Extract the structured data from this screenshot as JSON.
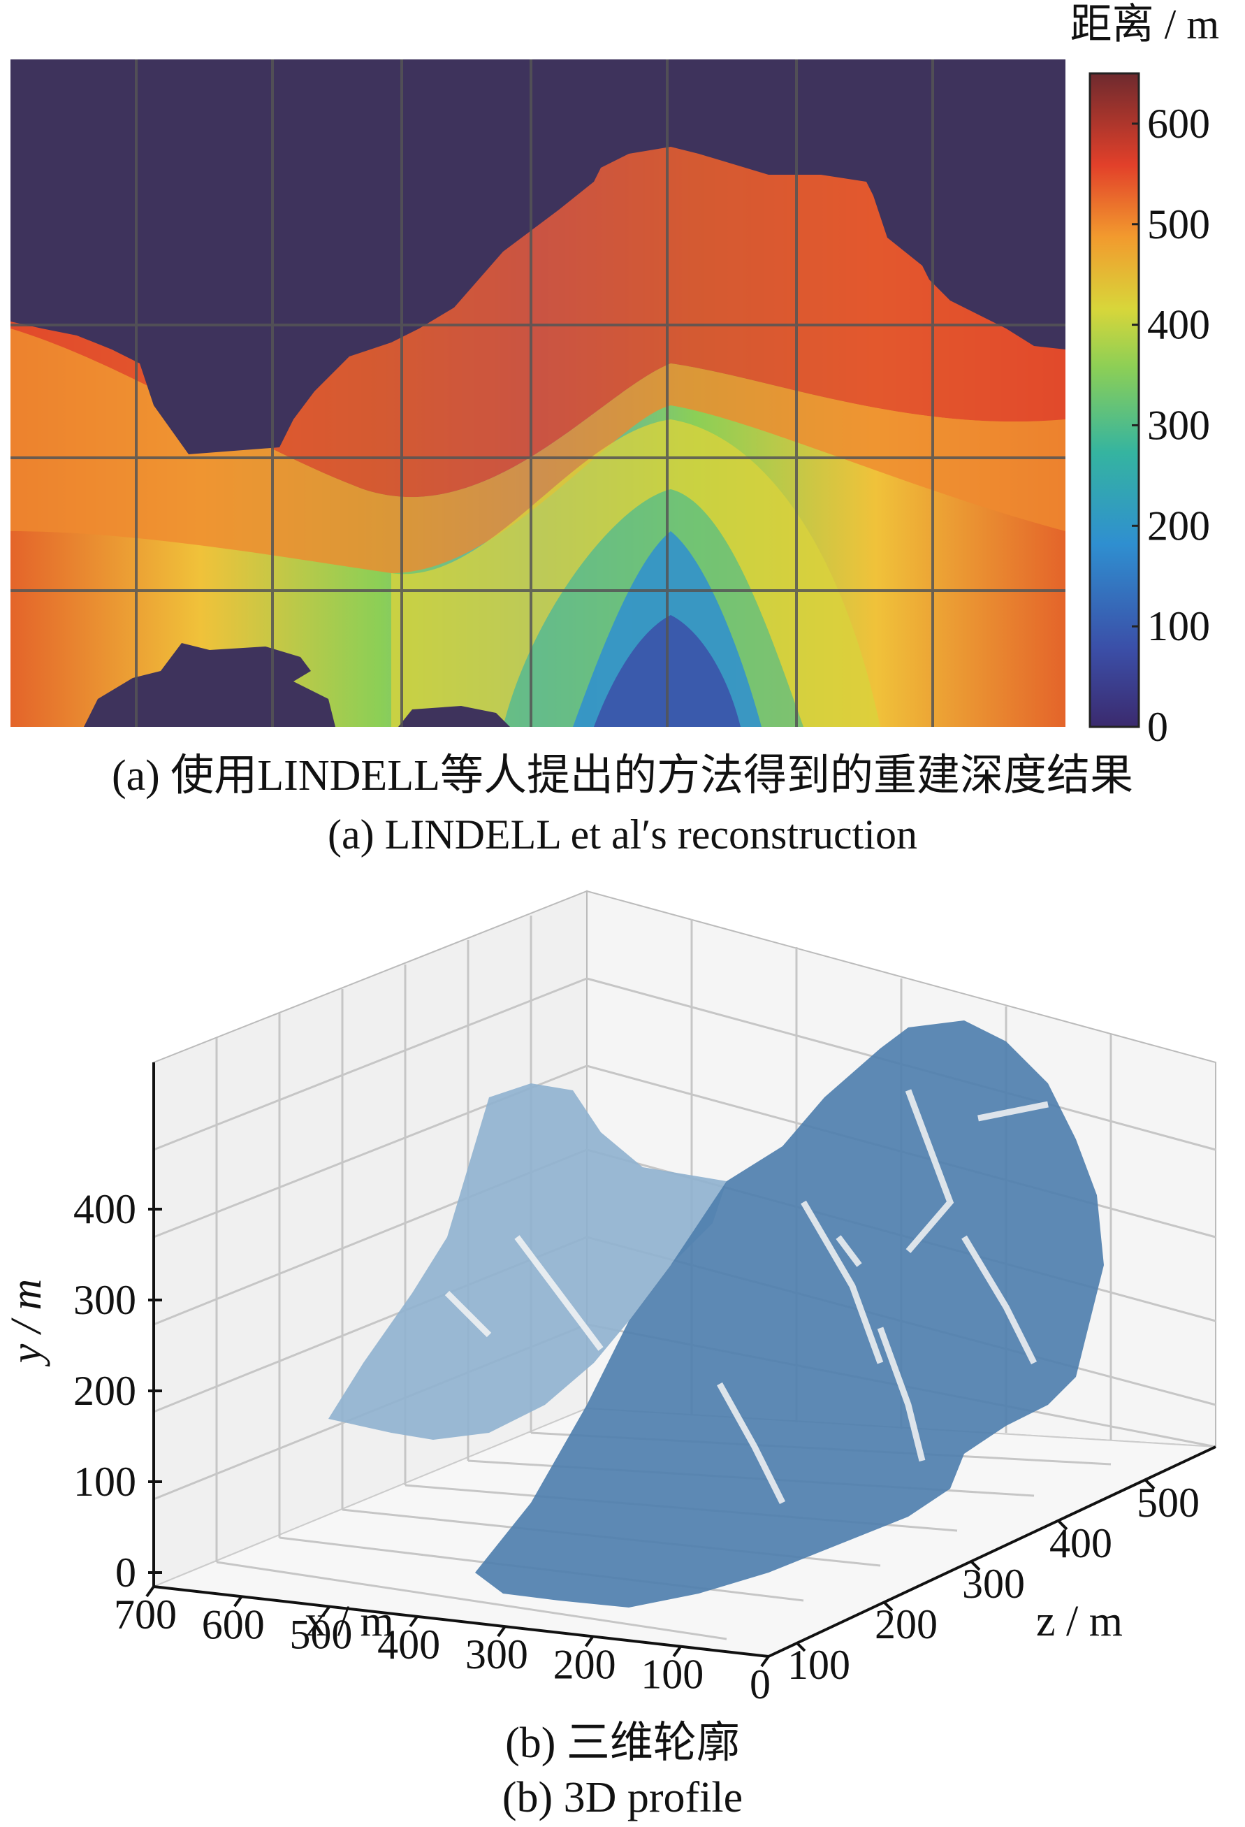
{
  "captions": {
    "a_cn": "(a) 使用LINDELL等人提出的方法得到的重建深度结果",
    "a_en": "(a) LINDELL et al′s reconstruction",
    "b_cn": "(b) 三维轮廓",
    "b_en": "(b) 3D profile"
  },
  "chart_data": [
    {
      "type": "heatmap",
      "title": "",
      "colorbar": {
        "label": "距离 / m",
        "ticks": [
          "0",
          "100",
          "200",
          "300",
          "400",
          "500",
          "600"
        ],
        "range": [
          0,
          650
        ],
        "colormap": "jet"
      },
      "grid": true,
      "depth_profile_summary": {
        "background_value": 0,
        "max_depth_at_ridge": 590,
        "min_depth_at_bottom_center": 150
      }
    },
    {
      "type": "scatter",
      "projection": "3d",
      "title": "",
      "point_color": "#4f7fae",
      "x_axis": {
        "label": "x / m",
        "ticks": [
          "700",
          "600",
          "500",
          "400",
          "300",
          "200",
          "100",
          "0"
        ]
      },
      "y_axis": {
        "label": "y / m",
        "ticks": [
          "0",
          "100",
          "200",
          "300",
          "400"
        ]
      },
      "z_axis": {
        "label": "z / m",
        "ticks": [
          "100",
          "200",
          "300",
          "400",
          "500"
        ]
      },
      "grid": true
    }
  ]
}
